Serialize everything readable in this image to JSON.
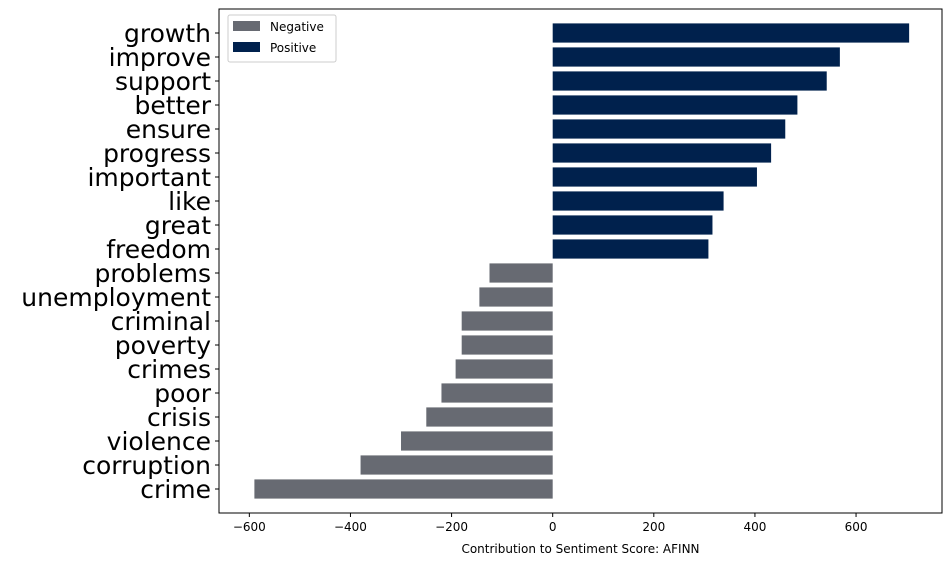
{
  "chart_data": {
    "type": "bar",
    "orientation": "horizontal",
    "categories": [
      "crime",
      "corruption",
      "violence",
      "crisis",
      "poor",
      "crimes",
      "poverty",
      "criminal",
      "unemployment",
      "problems",
      "freedom",
      "great",
      "like",
      "important",
      "progress",
      "ensure",
      "better",
      "support",
      "improve",
      "growth"
    ],
    "values": [
      -590,
      -380,
      -300,
      -250,
      -220,
      -192,
      -180,
      -180,
      -145,
      -125,
      308,
      316,
      338,
      404,
      432,
      460,
      484,
      542,
      568,
      705
    ],
    "series": [
      {
        "name": "Negative",
        "color": "#676a72"
      },
      {
        "name": "Positive",
        "color": "#00214d"
      }
    ],
    "xlabel": "Contribution to Sentiment Score: AFINN",
    "ylabel": "",
    "xlim": [
      -660,
      770
    ],
    "xticks": [
      -600,
      -400,
      -200,
      0,
      200,
      400,
      600
    ],
    "xtick_labels": [
      "−600",
      "−400",
      "−200",
      "0",
      "200",
      "400",
      "600"
    ],
    "grid": false,
    "legend": "top-left"
  }
}
